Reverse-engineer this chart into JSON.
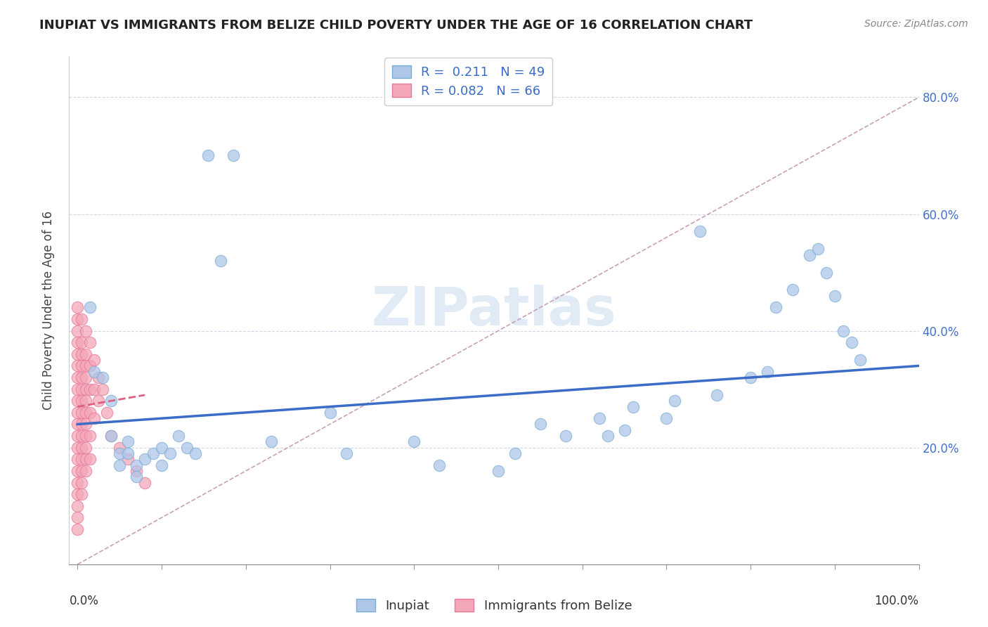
{
  "title": "INUPIAT VS IMMIGRANTS FROM BELIZE CHILD POVERTY UNDER THE AGE OF 16 CORRELATION CHART",
  "source": "Source: ZipAtlas.com",
  "ylabel": "Child Poverty Under the Age of 16",
  "xlim": [
    0,
    1.0
  ],
  "ylim": [
    0,
    0.87
  ],
  "yticks": [
    0.2,
    0.4,
    0.6,
    0.8
  ],
  "ytick_labels": [
    "20.0%",
    "40.0%",
    "60.0%",
    "80.0%"
  ],
  "inupiat_color": "#aec6e8",
  "belize_color": "#f4a7b9",
  "inupiat_edge": "#7aadd4",
  "belize_edge": "#e87898",
  "trend_inupiat_color": "#3a6cc8",
  "trend_belize_color": "#e06080",
  "diagonal_color": "#c8a0b8",
  "grid_color": "#d0d8e8",
  "background": "#ffffff",
  "inupiat_scatter": [
    [
      0.015,
      0.44
    ],
    [
      0.02,
      0.33
    ],
    [
      0.03,
      0.32
    ],
    [
      0.04,
      0.28
    ],
    [
      0.04,
      0.22
    ],
    [
      0.05,
      0.19
    ],
    [
      0.05,
      0.17
    ],
    [
      0.06,
      0.21
    ],
    [
      0.06,
      0.19
    ],
    [
      0.07,
      0.17
    ],
    [
      0.07,
      0.15
    ],
    [
      0.08,
      0.18
    ],
    [
      0.09,
      0.19
    ],
    [
      0.1,
      0.2
    ],
    [
      0.1,
      0.17
    ],
    [
      0.11,
      0.19
    ],
    [
      0.12,
      0.22
    ],
    [
      0.13,
      0.2
    ],
    [
      0.14,
      0.19
    ],
    [
      0.155,
      0.7
    ],
    [
      0.17,
      0.52
    ],
    [
      0.185,
      0.7
    ],
    [
      0.23,
      0.21
    ],
    [
      0.3,
      0.26
    ],
    [
      0.32,
      0.19
    ],
    [
      0.4,
      0.21
    ],
    [
      0.43,
      0.17
    ],
    [
      0.5,
      0.16
    ],
    [
      0.52,
      0.19
    ],
    [
      0.55,
      0.24
    ],
    [
      0.58,
      0.22
    ],
    [
      0.62,
      0.25
    ],
    [
      0.63,
      0.22
    ],
    [
      0.65,
      0.23
    ],
    [
      0.66,
      0.27
    ],
    [
      0.7,
      0.25
    ],
    [
      0.71,
      0.28
    ],
    [
      0.74,
      0.57
    ],
    [
      0.76,
      0.29
    ],
    [
      0.8,
      0.32
    ],
    [
      0.82,
      0.33
    ],
    [
      0.83,
      0.44
    ],
    [
      0.85,
      0.47
    ],
    [
      0.87,
      0.53
    ],
    [
      0.88,
      0.54
    ],
    [
      0.89,
      0.5
    ],
    [
      0.9,
      0.46
    ],
    [
      0.91,
      0.4
    ],
    [
      0.92,
      0.38
    ],
    [
      0.93,
      0.35
    ]
  ],
  "belize_scatter": [
    [
      0.0,
      0.44
    ],
    [
      0.0,
      0.42
    ],
    [
      0.0,
      0.4
    ],
    [
      0.0,
      0.38
    ],
    [
      0.0,
      0.36
    ],
    [
      0.0,
      0.34
    ],
    [
      0.0,
      0.32
    ],
    [
      0.0,
      0.3
    ],
    [
      0.0,
      0.28
    ],
    [
      0.0,
      0.26
    ],
    [
      0.0,
      0.24
    ],
    [
      0.0,
      0.22
    ],
    [
      0.0,
      0.2
    ],
    [
      0.0,
      0.18
    ],
    [
      0.0,
      0.16
    ],
    [
      0.0,
      0.14
    ],
    [
      0.0,
      0.12
    ],
    [
      0.0,
      0.1
    ],
    [
      0.0,
      0.08
    ],
    [
      0.0,
      0.06
    ],
    [
      0.005,
      0.42
    ],
    [
      0.005,
      0.38
    ],
    [
      0.005,
      0.36
    ],
    [
      0.005,
      0.34
    ],
    [
      0.005,
      0.32
    ],
    [
      0.005,
      0.3
    ],
    [
      0.005,
      0.28
    ],
    [
      0.005,
      0.26
    ],
    [
      0.005,
      0.24
    ],
    [
      0.005,
      0.22
    ],
    [
      0.005,
      0.2
    ],
    [
      0.005,
      0.18
    ],
    [
      0.005,
      0.16
    ],
    [
      0.005,
      0.14
    ],
    [
      0.005,
      0.12
    ],
    [
      0.01,
      0.4
    ],
    [
      0.01,
      0.36
    ],
    [
      0.01,
      0.34
    ],
    [
      0.01,
      0.32
    ],
    [
      0.01,
      0.3
    ],
    [
      0.01,
      0.28
    ],
    [
      0.01,
      0.26
    ],
    [
      0.01,
      0.24
    ],
    [
      0.01,
      0.22
    ],
    [
      0.01,
      0.2
    ],
    [
      0.01,
      0.18
    ],
    [
      0.01,
      0.16
    ],
    [
      0.015,
      0.38
    ],
    [
      0.015,
      0.34
    ],
    [
      0.015,
      0.3
    ],
    [
      0.015,
      0.26
    ],
    [
      0.015,
      0.22
    ],
    [
      0.015,
      0.18
    ],
    [
      0.02,
      0.35
    ],
    [
      0.02,
      0.3
    ],
    [
      0.02,
      0.25
    ],
    [
      0.025,
      0.32
    ],
    [
      0.025,
      0.28
    ],
    [
      0.03,
      0.3
    ],
    [
      0.035,
      0.26
    ],
    [
      0.04,
      0.22
    ],
    [
      0.05,
      0.2
    ],
    [
      0.06,
      0.18
    ],
    [
      0.07,
      0.16
    ],
    [
      0.08,
      0.14
    ]
  ]
}
